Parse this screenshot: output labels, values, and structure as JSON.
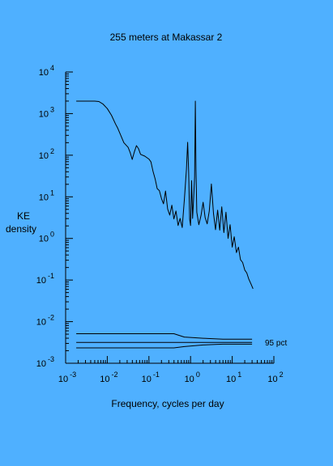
{
  "chart_data": {
    "type": "line",
    "title": "255 meters at Makassar 2",
    "xlabel": "Frequency, cycles per day",
    "ylabel_lines": [
      "KE",
      "density"
    ],
    "x_scale": "log",
    "y_scale": "log",
    "xlim": [
      0.001,
      100
    ],
    "ylim": [
      0.001,
      10000
    ],
    "x_ticks": [
      {
        "base": "10",
        "exp": "-3",
        "value": 0.001
      },
      {
        "base": "10",
        "exp": "-2",
        "value": 0.01
      },
      {
        "base": "10",
        "exp": "-1",
        "value": 0.1
      },
      {
        "base": "10",
        "exp": "0",
        "value": 1
      },
      {
        "base": "10",
        "exp": "1",
        "value": 10
      },
      {
        "base": "10",
        "exp": "2",
        "value": 100
      }
    ],
    "y_ticks": [
      {
        "base": "10",
        "exp": "4",
        "value": 10000
      },
      {
        "base": "10",
        "exp": "3",
        "value": 1000
      },
      {
        "base": "10",
        "exp": "2",
        "value": 100
      },
      {
        "base": "10",
        "exp": "1",
        "value": 10
      },
      {
        "base": "10",
        "exp": "0",
        "value": 1
      },
      {
        "base": "10",
        "exp": "-1",
        "value": 0.1
      },
      {
        "base": "10",
        "exp": "-2",
        "value": 0.01
      },
      {
        "base": "10",
        "exp": "-3",
        "value": 0.001
      }
    ],
    "grid": false,
    "series": [
      {
        "values": [
          [
            0.0018,
            1995
          ],
          [
            0.005,
            1995
          ],
          [
            0.0063,
            1950
          ],
          [
            0.0079,
            1700
          ],
          [
            0.01,
            1320
          ],
          [
            0.0126,
            912
          ],
          [
            0.0158,
            562
          ],
          [
            0.0178,
            447
          ],
          [
            0.02,
            339
          ],
          [
            0.0251,
            200
          ],
          [
            0.0316,
            155
          ],
          [
            0.0355,
            115
          ],
          [
            0.0398,
            79
          ],
          [
            0.0447,
            120
          ],
          [
            0.0501,
            170
          ],
          [
            0.0562,
            145
          ],
          [
            0.0631,
            105
          ],
          [
            0.0794,
            95
          ],
          [
            0.1,
            81
          ],
          [
            0.112,
            69
          ],
          [
            0.126,
            40
          ],
          [
            0.141,
            26.9
          ],
          [
            0.158,
            15.8
          ],
          [
            0.178,
            14.1
          ],
          [
            0.2,
            9.1
          ],
          [
            0.224,
            6.8
          ],
          [
            0.251,
            13.8
          ],
          [
            0.282,
            5.1
          ],
          [
            0.316,
            3.63
          ],
          [
            0.355,
            6.3
          ],
          [
            0.398,
            2.95
          ],
          [
            0.447,
            4.57
          ],
          [
            0.501,
            2.04
          ],
          [
            0.562,
            3.02
          ],
          [
            0.631,
            1.82
          ],
          [
            0.71,
            8.9
          ],
          [
            0.794,
            45.7
          ],
          [
            0.85,
            204
          ],
          [
            0.9,
            42.7
          ],
          [
            0.95,
            2.88
          ],
          [
            1.0,
            2.04
          ],
          [
            1.06,
            24.5
          ],
          [
            1.12,
            3.02
          ],
          [
            1.19,
            10.2
          ],
          [
            1.25,
            30
          ],
          [
            1.3,
            1995
          ],
          [
            1.35,
            46.8
          ],
          [
            1.41,
            4.27
          ],
          [
            1.58,
            2.14
          ],
          [
            1.78,
            3.55
          ],
          [
            2.0,
            7.4
          ],
          [
            2.24,
            3.16
          ],
          [
            2.51,
            2.24
          ],
          [
            2.82,
            4.57
          ],
          [
            3.16,
            20.4
          ],
          [
            3.55,
            3.98
          ],
          [
            3.98,
            1.62
          ],
          [
            4.47,
            4.79
          ],
          [
            5.01,
            1.58
          ],
          [
            5.62,
            5.75
          ],
          [
            6.31,
            1.38
          ],
          [
            7.08,
            4.27
          ],
          [
            7.94,
            1.0
          ],
          [
            8.91,
            2.14
          ],
          [
            10.0,
            0.617
          ],
          [
            11.2,
            1.1
          ],
          [
            12.6,
            0.457
          ],
          [
            14.1,
            0.617
          ],
          [
            15.8,
            0.309
          ],
          [
            17.8,
            0.263
          ],
          [
            20.0,
            0.174
          ],
          [
            22.4,
            0.148
          ],
          [
            25.1,
            0.105
          ],
          [
            28.2,
            0.0813
          ],
          [
            31.6,
            0.0617
          ]
        ]
      },
      {
        "values": [
          [
            0.0018,
            0.00513
          ],
          [
            0.4,
            0.00513
          ],
          [
            0.708,
            0.00427
          ],
          [
            2.0,
            0.00398
          ],
          [
            6.0,
            0.0038
          ],
          [
            30,
            0.0038
          ]
        ]
      },
      {
        "values": [
          [
            0.0018,
            0.00316
          ],
          [
            30,
            0.00316
          ]
        ]
      },
      {
        "values": [
          [
            0.0018,
            0.00234
          ],
          [
            0.4,
            0.00234
          ],
          [
            0.708,
            0.00251
          ],
          [
            2.0,
            0.00275
          ],
          [
            6.0,
            0.00288
          ],
          [
            30,
            0.00288
          ]
        ]
      }
    ],
    "annotation": "95 pct"
  }
}
